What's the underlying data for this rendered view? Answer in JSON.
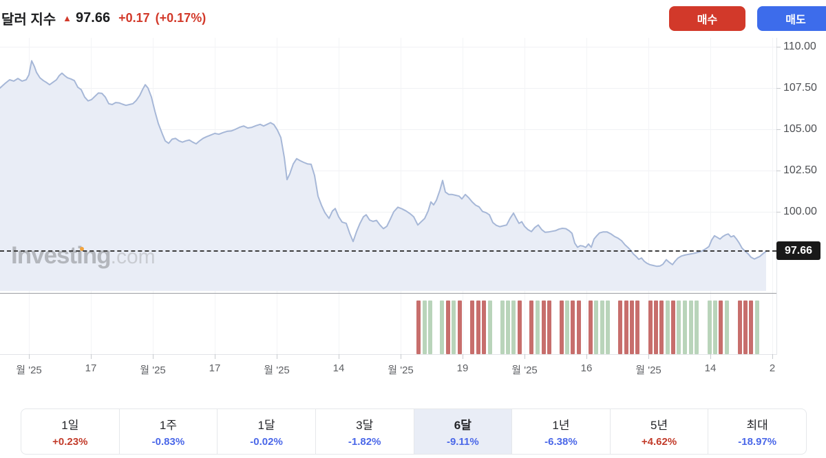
{
  "header": {
    "title": "달러 지수",
    "arrow_icon": "▲",
    "price": "97.66",
    "change": "+0.17",
    "change_pct": "(+0.17%)"
  },
  "actions": {
    "buy_label": "매수",
    "sell_label": "매도"
  },
  "watermark": {
    "brand": "Investing",
    "tld": ".com"
  },
  "colors": {
    "up_red": "#d2392a",
    "sell_blue": "#3d6ceb",
    "line": "#a6b7d7",
    "area_fill": "#e9edf6",
    "bar_red": "#c76e6c",
    "bar_green": "#b9d4ba",
    "pct_positive": "#c23b2a",
    "pct_negative": "#4a67e8",
    "price_tag_bg": "#191919"
  },
  "chart_data": {
    "type": "area",
    "title": "달러 지수 (Dollar Index), 6-month view",
    "current_value": 97.66,
    "current_price_label": "97.66",
    "y_ticks": [
      "110.00",
      "107.50",
      "105.00",
      "102.50",
      "100.00"
    ],
    "y_tick_values": [
      110,
      107.5,
      105,
      102.5,
      100
    ],
    "x_tick_labels": [
      "월 '25",
      "17",
      "월 '25",
      "17",
      "월 '25",
      "14",
      "월 '25",
      "19",
      "월 '25",
      "16",
      "월 '25",
      "14",
      "2"
    ],
    "points": [
      [
        0,
        107.5
      ],
      [
        8,
        107.8
      ],
      [
        14,
        108.0
      ],
      [
        20,
        107.92
      ],
      [
        26,
        108.08
      ],
      [
        32,
        107.92
      ],
      [
        38,
        108.0
      ],
      [
        42,
        108.3
      ],
      [
        46,
        109.15
      ],
      [
        50,
        108.8
      ],
      [
        53,
        108.45
      ],
      [
        58,
        108.12
      ],
      [
        63,
        107.95
      ],
      [
        67,
        107.85
      ],
      [
        72,
        107.7
      ],
      [
        77,
        107.85
      ],
      [
        82,
        108.0
      ],
      [
        86,
        108.25
      ],
      [
        90,
        108.4
      ],
      [
        94,
        108.25
      ],
      [
        98,
        108.12
      ],
      [
        103,
        108.05
      ],
      [
        108,
        107.95
      ],
      [
        113,
        107.55
      ],
      [
        118,
        107.4
      ],
      [
        123,
        106.95
      ],
      [
        128,
        106.72
      ],
      [
        133,
        106.8
      ],
      [
        138,
        107.0
      ],
      [
        143,
        107.2
      ],
      [
        148,
        107.18
      ],
      [
        153,
        106.95
      ],
      [
        158,
        106.55
      ],
      [
        163,
        106.5
      ],
      [
        168,
        106.62
      ],
      [
        173,
        106.6
      ],
      [
        178,
        106.52
      ],
      [
        183,
        106.45
      ],
      [
        188,
        106.5
      ],
      [
        193,
        106.55
      ],
      [
        198,
        106.75
      ],
      [
        203,
        107.05
      ],
      [
        207,
        107.4
      ],
      [
        211,
        107.7
      ],
      [
        215,
        107.5
      ],
      [
        220,
        106.95
      ],
      [
        225,
        106.1
      ],
      [
        230,
        105.35
      ],
      [
        236,
        104.7
      ],
      [
        240,
        104.3
      ],
      [
        245,
        104.15
      ],
      [
        250,
        104.4
      ],
      [
        255,
        104.45
      ],
      [
        260,
        104.3
      ],
      [
        265,
        104.22
      ],
      [
        270,
        104.3
      ],
      [
        275,
        104.35
      ],
      [
        280,
        104.22
      ],
      [
        285,
        104.12
      ],
      [
        290,
        104.3
      ],
      [
        295,
        104.45
      ],
      [
        300,
        104.55
      ],
      [
        306,
        104.65
      ],
      [
        312,
        104.75
      ],
      [
        318,
        104.7
      ],
      [
        324,
        104.8
      ],
      [
        330,
        104.88
      ],
      [
        336,
        104.9
      ],
      [
        342,
        105.0
      ],
      [
        348,
        105.12
      ],
      [
        354,
        105.2
      ],
      [
        360,
        105.08
      ],
      [
        366,
        105.12
      ],
      [
        372,
        105.22
      ],
      [
        378,
        105.3
      ],
      [
        383,
        105.2
      ],
      [
        388,
        105.3
      ],
      [
        393,
        105.4
      ],
      [
        398,
        105.28
      ],
      [
        403,
        104.95
      ],
      [
        408,
        104.5
      ],
      [
        413,
        103.3
      ],
      [
        417,
        101.95
      ],
      [
        421,
        102.3
      ],
      [
        426,
        102.9
      ],
      [
        431,
        103.22
      ],
      [
        436,
        103.1
      ],
      [
        441,
        103.0
      ],
      [
        447,
        102.9
      ],
      [
        452,
        102.88
      ],
      [
        457,
        102.2
      ],
      [
        462,
        100.95
      ],
      [
        467,
        100.4
      ],
      [
        472,
        99.95
      ],
      [
        478,
        99.6
      ],
      [
        483,
        100.05
      ],
      [
        487,
        100.2
      ],
      [
        492,
        99.7
      ],
      [
        497,
        99.38
      ],
      [
        503,
        99.3
      ],
      [
        508,
        98.7
      ],
      [
        513,
        98.2
      ],
      [
        518,
        98.8
      ],
      [
        523,
        99.3
      ],
      [
        528,
        99.7
      ],
      [
        532,
        99.82
      ],
      [
        537,
        99.5
      ],
      [
        542,
        99.42
      ],
      [
        547,
        99.48
      ],
      [
        552,
        99.2
      ],
      [
        557,
        98.98
      ],
      [
        562,
        99.12
      ],
      [
        567,
        99.55
      ],
      [
        572,
        100.0
      ],
      [
        578,
        100.28
      ],
      [
        584,
        100.18
      ],
      [
        590,
        100.05
      ],
      [
        596,
        99.88
      ],
      [
        601,
        99.7
      ],
      [
        607,
        99.2
      ],
      [
        612,
        99.4
      ],
      [
        617,
        99.6
      ],
      [
        622,
        100.05
      ],
      [
        626,
        100.6
      ],
      [
        630,
        100.42
      ],
      [
        634,
        100.7
      ],
      [
        639,
        101.3
      ],
      [
        643,
        101.9
      ],
      [
        647,
        101.2
      ],
      [
        652,
        101.05
      ],
      [
        657,
        101.05
      ],
      [
        662,
        101.0
      ],
      [
        667,
        100.95
      ],
      [
        671,
        100.78
      ],
      [
        676,
        101.05
      ],
      [
        681,
        100.85
      ],
      [
        686,
        100.6
      ],
      [
        691,
        100.4
      ],
      [
        696,
        100.3
      ],
      [
        701,
        100.02
      ],
      [
        706,
        99.95
      ],
      [
        711,
        99.82
      ],
      [
        716,
        99.35
      ],
      [
        721,
        99.18
      ],
      [
        726,
        99.1
      ],
      [
        731,
        99.15
      ],
      [
        736,
        99.2
      ],
      [
        741,
        99.6
      ],
      [
        746,
        99.92
      ],
      [
        750,
        99.6
      ],
      [
        754,
        99.3
      ],
      [
        758,
        99.4
      ],
      [
        762,
        99.12
      ],
      [
        767,
        98.92
      ],
      [
        772,
        98.8
      ],
      [
        777,
        99.05
      ],
      [
        782,
        99.2
      ],
      [
        787,
        98.92
      ],
      [
        792,
        98.76
      ],
      [
        797,
        98.78
      ],
      [
        802,
        98.82
      ],
      [
        807,
        98.86
      ],
      [
        812,
        98.95
      ],
      [
        817,
        99.0
      ],
      [
        822,
        98.98
      ],
      [
        827,
        98.85
      ],
      [
        831,
        98.7
      ],
      [
        835,
        98.1
      ],
      [
        839,
        97.85
      ],
      [
        843,
        97.95
      ],
      [
        847,
        97.92
      ],
      [
        851,
        97.84
      ],
      [
        855,
        98.05
      ],
      [
        859,
        97.85
      ],
      [
        863,
        98.35
      ],
      [
        867,
        98.55
      ],
      [
        871,
        98.72
      ],
      [
        876,
        98.78
      ],
      [
        882,
        98.78
      ],
      [
        888,
        98.65
      ],
      [
        893,
        98.5
      ],
      [
        898,
        98.4
      ],
      [
        903,
        98.25
      ],
      [
        908,
        98.0
      ],
      [
        912,
        97.85
      ],
      [
        916,
        97.68
      ],
      [
        920,
        97.45
      ],
      [
        924,
        97.3
      ],
      [
        928,
        97.12
      ],
      [
        932,
        97.2
      ],
      [
        936,
        97.0
      ],
      [
        940,
        96.88
      ],
      [
        944,
        96.8
      ],
      [
        949,
        96.75
      ],
      [
        954,
        96.7
      ],
      [
        959,
        96.72
      ],
      [
        963,
        96.82
      ],
      [
        968,
        97.1
      ],
      [
        972,
        96.95
      ],
      [
        977,
        96.8
      ],
      [
        981,
        97.02
      ],
      [
        985,
        97.2
      ],
      [
        990,
        97.32
      ],
      [
        995,
        97.38
      ],
      [
        1000,
        97.42
      ],
      [
        1005,
        97.46
      ],
      [
        1010,
        97.5
      ],
      [
        1015,
        97.56
      ],
      [
        1020,
        97.63
      ],
      [
        1025,
        97.75
      ],
      [
        1030,
        97.9
      ],
      [
        1034,
        98.3
      ],
      [
        1038,
        98.55
      ],
      [
        1042,
        98.45
      ],
      [
        1046,
        98.35
      ],
      [
        1050,
        98.5
      ],
      [
        1054,
        98.6
      ],
      [
        1058,
        98.66
      ],
      [
        1062,
        98.48
      ],
      [
        1066,
        98.55
      ],
      [
        1070,
        98.35
      ],
      [
        1074,
        98.1
      ],
      [
        1078,
        97.8
      ],
      [
        1083,
        97.6
      ],
      [
        1087,
        97.45
      ],
      [
        1091,
        97.25
      ],
      [
        1096,
        97.14
      ],
      [
        1100,
        97.22
      ],
      [
        1104,
        97.3
      ],
      [
        1108,
        97.45
      ],
      [
        1113,
        97.6
      ]
    ],
    "volume_bars": [
      [
        605,
        "r"
      ],
      [
        614,
        "g"
      ],
      [
        622,
        "g"
      ],
      [
        639,
        "g"
      ],
      [
        648,
        "r"
      ],
      [
        656,
        "g"
      ],
      [
        665,
        "r"
      ],
      [
        683,
        "r"
      ],
      [
        692,
        "r"
      ],
      [
        700,
        "r"
      ],
      [
        709,
        "g"
      ],
      [
        727,
        "g"
      ],
      [
        735,
        "g"
      ],
      [
        743,
        "g"
      ],
      [
        752,
        "r"
      ],
      [
        769,
        "r"
      ],
      [
        778,
        "g"
      ],
      [
        787,
        "r"
      ],
      [
        795,
        "r"
      ],
      [
        813,
        "r"
      ],
      [
        821,
        "g"
      ],
      [
        829,
        "r"
      ],
      [
        838,
        "r"
      ],
      [
        855,
        "r"
      ],
      [
        863,
        "g"
      ],
      [
        872,
        "g"
      ],
      [
        880,
        "g"
      ],
      [
        898,
        "r"
      ],
      [
        907,
        "r"
      ],
      [
        915,
        "r"
      ],
      [
        923,
        "r"
      ],
      [
        942,
        "r"
      ],
      [
        950,
        "r"
      ],
      [
        958,
        "r"
      ],
      [
        967,
        "g"
      ],
      [
        975,
        "r"
      ],
      [
        983,
        "g"
      ],
      [
        992,
        "g"
      ],
      [
        1001,
        "g"
      ],
      [
        1009,
        "g"
      ],
      [
        1028,
        "g"
      ],
      [
        1036,
        "g"
      ],
      [
        1044,
        "r"
      ],
      [
        1053,
        "g"
      ],
      [
        1072,
        "r"
      ],
      [
        1080,
        "r"
      ],
      [
        1088,
        "r"
      ],
      [
        1097,
        "g"
      ]
    ]
  },
  "footer": {
    "tabs": [
      {
        "label": "1일",
        "pct": "+0.23%",
        "direction": "positive",
        "selected": false
      },
      {
        "label": "1주",
        "pct": "-0.83%",
        "direction": "negative",
        "selected": false
      },
      {
        "label": "1달",
        "pct": "-0.02%",
        "direction": "negative",
        "selected": false
      },
      {
        "label": "3달",
        "pct": "-1.82%",
        "direction": "negative",
        "selected": false
      },
      {
        "label": "6달",
        "pct": "-9.11%",
        "direction": "negative",
        "selected": true
      },
      {
        "label": "1년",
        "pct": "-6.38%",
        "direction": "negative",
        "selected": false
      },
      {
        "label": "5년",
        "pct": "+4.62%",
        "direction": "positive",
        "selected": false
      },
      {
        "label": "최대",
        "pct": "-18.97%",
        "direction": "negative",
        "selected": false
      }
    ]
  }
}
